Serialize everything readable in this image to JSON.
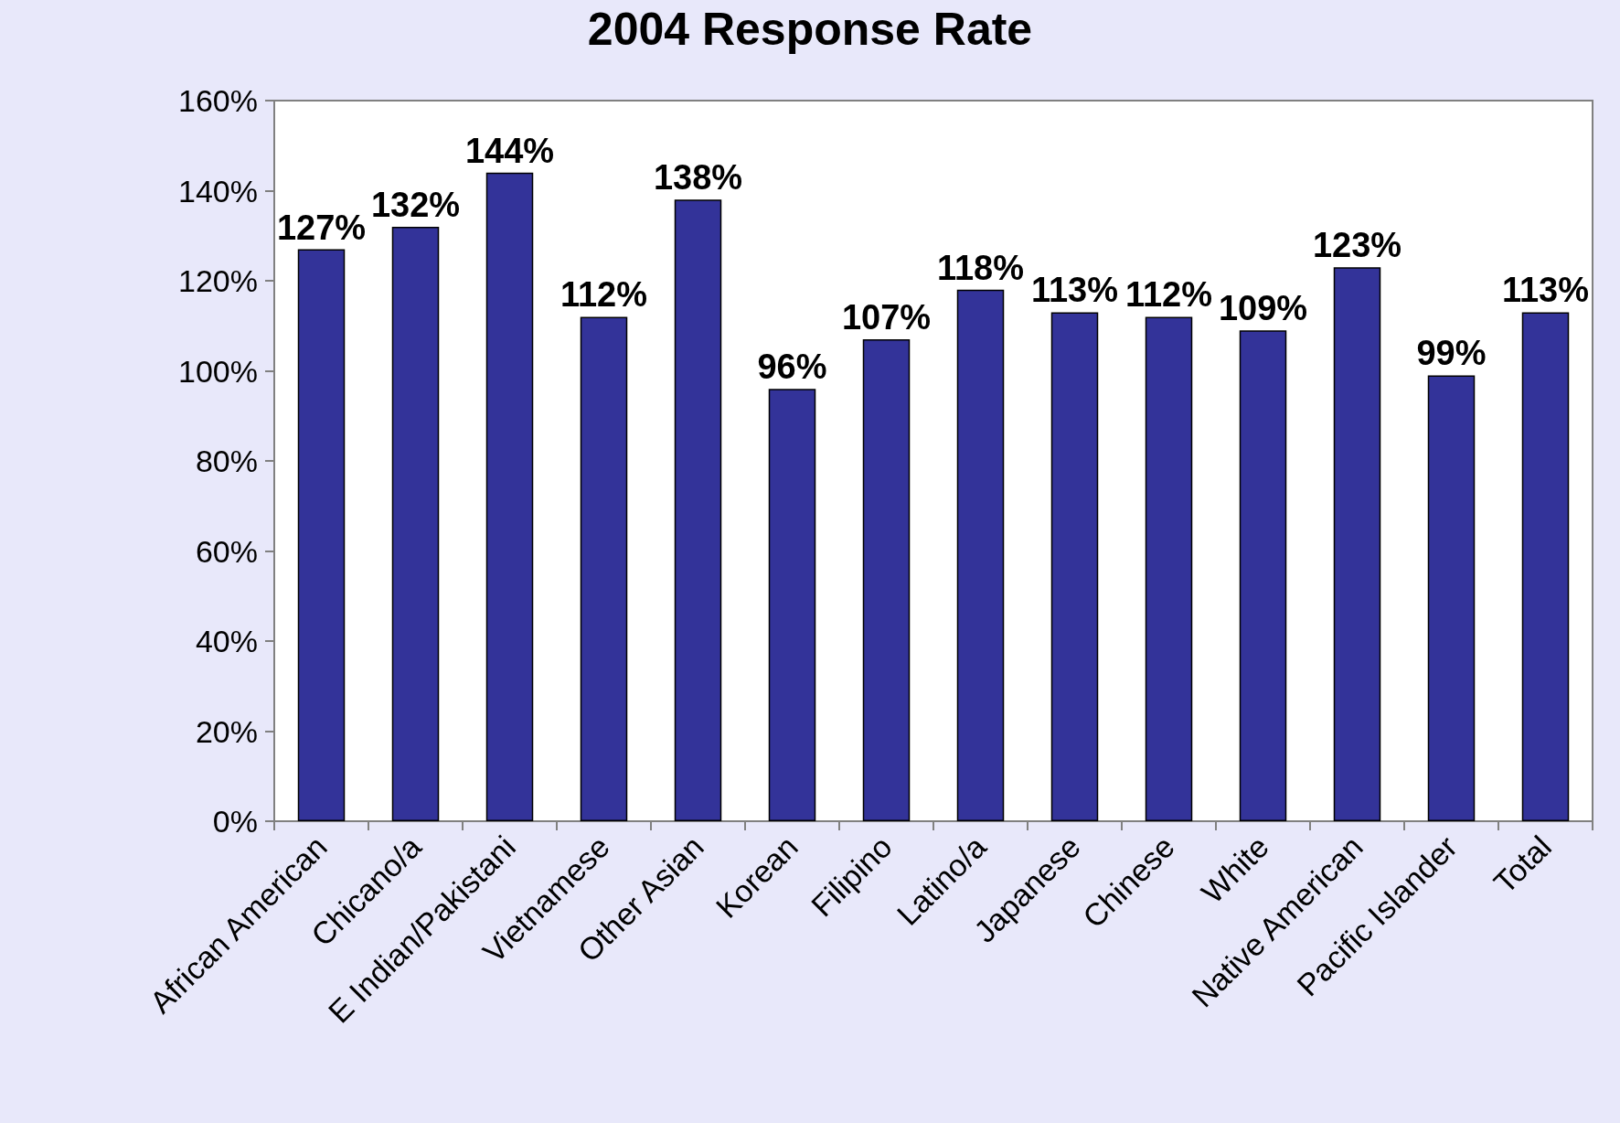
{
  "chart_data": {
    "type": "bar",
    "title": "2004 Response Rate",
    "categories": [
      "African American",
      "Chicano/a",
      "E Indian/Pakistani",
      "Vietnamese",
      "Other Asian",
      "Korean",
      "Filipino",
      "Latino/a",
      "Japanese",
      "Chinese",
      "White",
      "Native American",
      "Pacific Islander",
      "Total"
    ],
    "values": [
      127,
      132,
      144,
      112,
      138,
      96,
      107,
      118,
      113,
      112,
      109,
      123,
      99,
      113
    ],
    "value_labels": [
      "127%",
      "132%",
      "144%",
      "112%",
      "138%",
      "96%",
      "107%",
      "118%",
      "113%",
      "112%",
      "109%",
      "123%",
      "99%",
      "113%"
    ],
    "color": "#333399",
    "ylim": [
      0,
      160
    ],
    "yticks": [
      {
        "value": 0,
        "label": "0%"
      },
      {
        "value": 20,
        "label": "20%"
      },
      {
        "value": 40,
        "label": "40%"
      },
      {
        "value": 60,
        "label": "60%"
      },
      {
        "value": 80,
        "label": "80%"
      },
      {
        "value": 100,
        "label": "100%"
      },
      {
        "value": 120,
        "label": "120%"
      },
      {
        "value": 140,
        "label": "140%"
      },
      {
        "value": 160,
        "label": "160%"
      }
    ],
    "grid": false
  }
}
